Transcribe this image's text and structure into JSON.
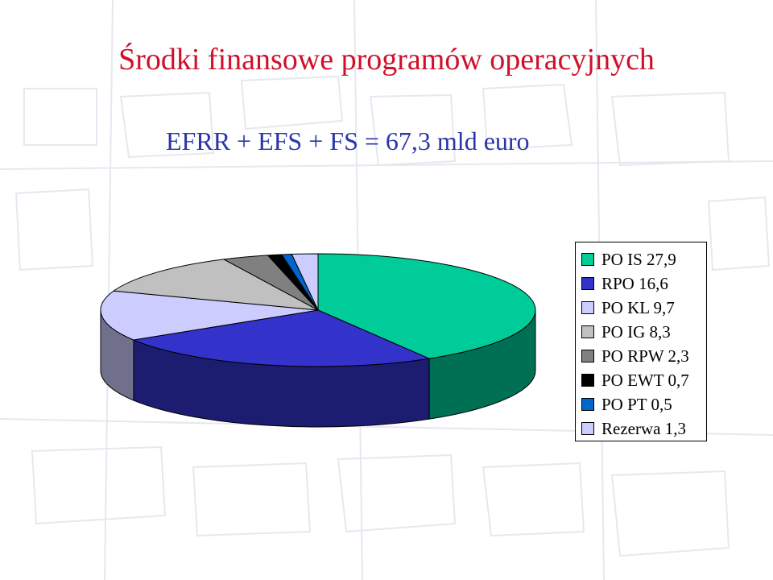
{
  "title": "Środki finansowe programów operacyjnych",
  "subtitle": "EFRR + EFS + FS = 67,3 mld euro",
  "chart_data": {
    "type": "pie",
    "style": "3d-tilted",
    "legend_placement": "right",
    "categories": [
      "PO IS",
      "RPO",
      "PO KL",
      "PO IG",
      "PO RPW",
      "PO EWT",
      "PO PT",
      "Rezerwa"
    ],
    "values": [
      27.9,
      16.6,
      9.7,
      8.3,
      2.3,
      0.7,
      0.5,
      1.3
    ],
    "colors": [
      "#00cc99",
      "#3333cc",
      "#ccccff",
      "#c0c0c0",
      "#808080",
      "#000000",
      "#0066cc",
      "#ccccff"
    ],
    "legend_labels": [
      "PO IS 27,9",
      "RPO 16,6",
      "PO KL 9,7",
      "PO IG 8,3",
      "PO RPW 2,3",
      "PO EWT 0,7",
      "PO PT 0,5",
      "Rezerwa 1,3"
    ]
  }
}
